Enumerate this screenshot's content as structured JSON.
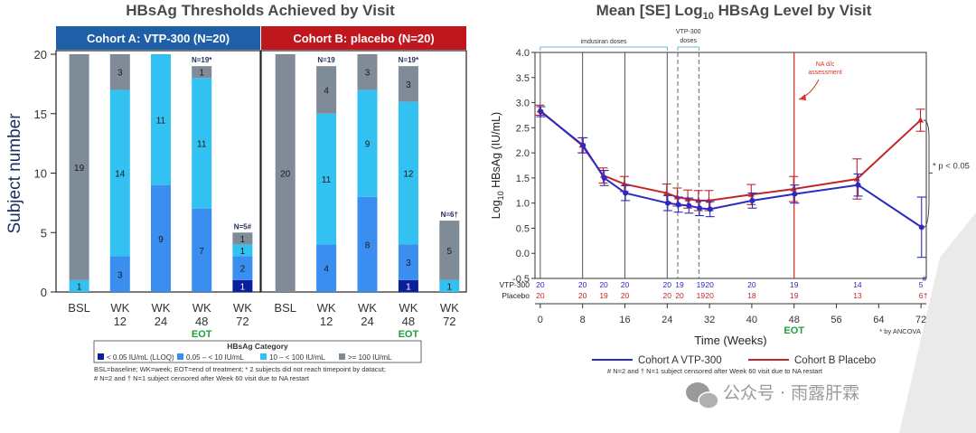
{
  "chart_data": [
    {
      "type": "bar",
      "title": "HBsAg Thresholds Achieved by Visit",
      "ylabel": "Subject number",
      "ylim": [
        0,
        20
      ],
      "yticks": [
        "0",
        "5",
        "10",
        "15",
        "20"
      ],
      "categories": [
        "BSL",
        "WK\n12",
        "WK\n24",
        "WK\n48",
        "WK\n72"
      ],
      "cohorts": [
        {
          "name": "Cohort A: VTP-300 (N=20)",
          "color": "#1f5fa8",
          "bars": [
            {
              "cat": "BSL",
              "stack": [
                0,
                0,
                1,
                19
              ],
              "n_label": "",
              "eot": ""
            },
            {
              "cat": "WK 12",
              "stack": [
                0,
                3,
                14,
                3
              ],
              "n_label": "",
              "eot": ""
            },
            {
              "cat": "WK 24",
              "stack": [
                0,
                9,
                11,
                0
              ],
              "n_label": "",
              "eot": ""
            },
            {
              "cat": "WK 48",
              "stack": [
                0,
                7,
                11,
                1
              ],
              "n_label": "N=19*",
              "eot": "EOT"
            },
            {
              "cat": "WK 72",
              "stack": [
                1,
                2,
                1,
                1
              ],
              "n_label": "N=5#",
              "eot": ""
            }
          ]
        },
        {
          "name": "Cohort B: placebo (N=20)",
          "color": "#c0161d",
          "bars": [
            {
              "cat": "BSL",
              "stack": [
                0,
                0,
                0,
                20
              ],
              "n_label": "",
              "eot": ""
            },
            {
              "cat": "WK 12",
              "stack": [
                0,
                4,
                11,
                4
              ],
              "n_label": "N=19",
              "eot": ""
            },
            {
              "cat": "WK 24",
              "stack": [
                0,
                8,
                9,
                3
              ],
              "n_label": "",
              "eot": ""
            },
            {
              "cat": "WK 48",
              "stack": [
                1,
                3,
                12,
                3
              ],
              "n_label": "N=19*",
              "eot": "EOT"
            },
            {
              "cat": "WK 72",
              "stack": [
                0,
                0,
                1,
                5
              ],
              "n_label": "N=6†",
              "eot": ""
            }
          ]
        }
      ],
      "legend": {
        "title": "HBsAg Category",
        "items": [
          {
            "label": "< 0.05 IU/mL (LLOQ)",
            "color": "#0a1f9e"
          },
          {
            "label": "0.05 – < 10 IU/mL",
            "color": "#3a8ef0"
          },
          {
            "label": "10 – < 100 IU/mL",
            "color": "#33c1f2"
          },
          {
            "label": ">= 100 IU/mL",
            "color": "#7f8c97"
          }
        ]
      },
      "footnote_lines": [
        "BSL=baseline; WK=week; EOT=end of treatment; * 2 subjects did not reach timepoint by datacut;",
        "# N=2 and † N=1 subject censored after Week 60 visit due to NA restart"
      ]
    },
    {
      "type": "line",
      "title": "Mean [SE] Log₁₀ HBsAg Level by Visit",
      "ylabel": "Log₁₀ HBsAg (IU/mL)",
      "xlabel": "Time (Weeks)",
      "xlim": [
        -1,
        73
      ],
      "ylim": [
        -0.5,
        4.0
      ],
      "xticks": [
        0,
        8,
        16,
        24,
        32,
        40,
        48,
        56,
        64,
        72
      ],
      "yticks": [
        -0.5,
        0.0,
        0.5,
        1.0,
        1.5,
        2.0,
        2.5,
        3.0,
        3.5,
        4.0
      ],
      "series": [
        {
          "name": "Cohort A VTP-300",
          "color": "#2b2bc4",
          "x": [
            0,
            8,
            12,
            16,
            24,
            26,
            28,
            30,
            32,
            40,
            48,
            60,
            72
          ],
          "y": [
            2.82,
            2.15,
            1.5,
            1.2,
            1.0,
            0.97,
            0.95,
            0.9,
            0.88,
            1.05,
            1.18,
            1.36,
            0.52
          ],
          "se": [
            0.1,
            0.15,
            0.15,
            0.15,
            0.15,
            0.15,
            0.15,
            0.15,
            0.15,
            0.15,
            0.18,
            0.22,
            0.6
          ]
        },
        {
          "name": "Cohort B Placebo",
          "color": "#c0262c",
          "x": [
            0,
            8,
            12,
            16,
            24,
            26,
            28,
            30,
            32,
            40,
            48,
            60,
            72
          ],
          "y": [
            2.85,
            2.15,
            1.55,
            1.38,
            1.2,
            1.12,
            1.08,
            1.05,
            1.05,
            1.17,
            1.28,
            1.48,
            2.65
          ],
          "se": [
            0.1,
            0.15,
            0.15,
            0.15,
            0.18,
            0.18,
            0.18,
            0.2,
            0.2,
            0.2,
            0.25,
            0.4,
            0.22
          ]
        }
      ],
      "n_rows": {
        "labels": [
          "VTP-300",
          "Placebo"
        ],
        "x": [
          0,
          8,
          12,
          16,
          24,
          26,
          28,
          30,
          32,
          40,
          48,
          60,
          72
        ],
        "vtp": [
          "20",
          "20",
          "20",
          "20",
          "20",
          "19",
          "",
          "19",
          "20",
          "20",
          "19",
          "14",
          "5"
        ],
        "placebo": [
          "20",
          "20",
          "19",
          "20",
          "20",
          "20",
          "",
          "19",
          "20",
          "18",
          "19",
          "13",
          "6"
        ],
        "vtp_mark": "#",
        "placebo_mark": "†"
      },
      "annotations": {
        "imdusiran": "imdusiran doses",
        "vtp_doses_1": "VTP-300",
        "vtp_doses_2": "doses",
        "na_dc_1": "NA d/c",
        "na_dc_2": "assessment",
        "pval": "* p < 0.05",
        "eot": "EOT",
        "ancova": "* by ANCOVA"
      },
      "legend_footnote": "# N=2 and † N=1 subject censored after Week 60 visit due to NA restart"
    }
  ],
  "watermark": "公众号 · 雨露肝霖"
}
